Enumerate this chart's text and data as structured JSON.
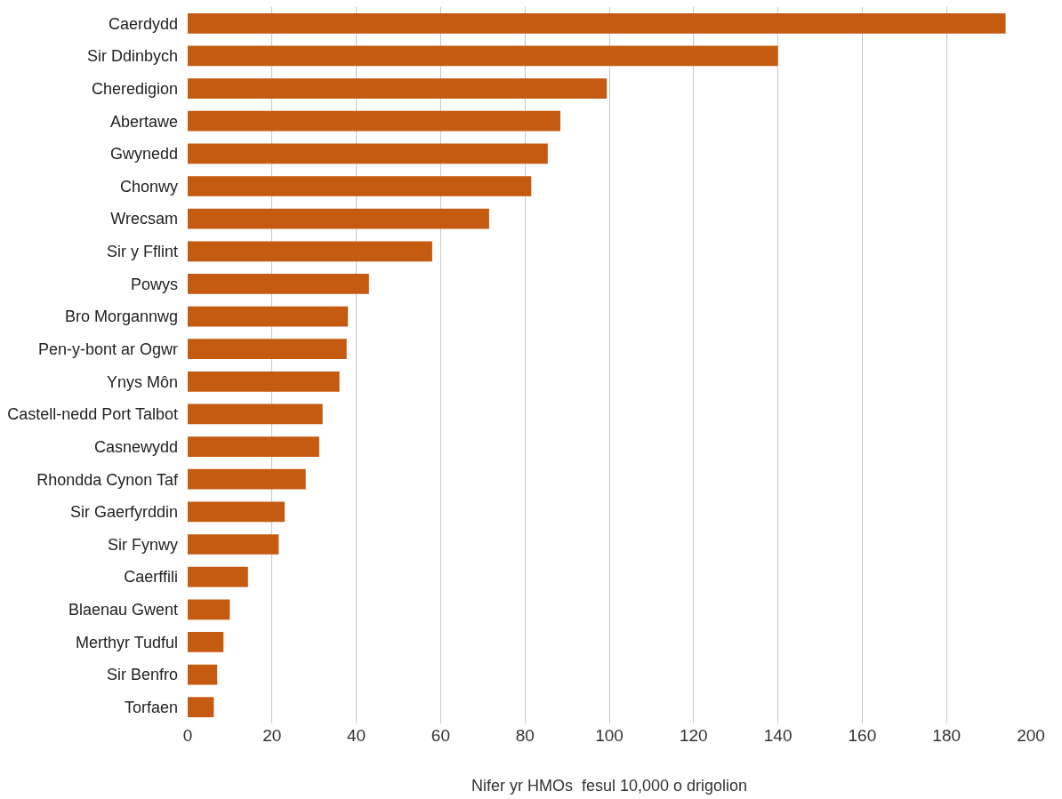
{
  "chart_data": {
    "type": "bar",
    "orientation": "horizontal",
    "xlabel": "Nifer yr HMOs  fesul 10,000 o drigolion",
    "categories": [
      "Caerdydd",
      "Sir Ddinbych",
      "Cheredigion",
      "Abertawe",
      "Gwynedd",
      "Chonwy",
      "Wrecsam",
      "Sir y Fflint",
      "Powys",
      "Bro Morgannwg",
      "Pen-y-bont ar Ogwr",
      "Ynys Môn",
      "Castell-nedd Port Talbot",
      "Casnewydd",
      "Rhondda Cynon Taf",
      "Sir Gaerfyrddin",
      "Sir Fynwy",
      "Caerffili",
      "Blaenau Gwent",
      "Merthyr Tudful",
      "Sir Benfro",
      "Torfaen"
    ],
    "values": [
      194,
      140,
      99.4,
      88.4,
      85.4,
      81.5,
      71.5,
      58,
      43,
      38,
      37.7,
      36,
      32,
      31.2,
      28,
      23,
      21.6,
      14.3,
      10,
      8.5,
      7,
      6.2
    ],
    "color": "#c55a11",
    "xlim": [
      0,
      200
    ],
    "xticks": [
      0,
      20,
      40,
      60,
      80,
      100,
      120,
      140,
      160,
      180,
      200
    ],
    "grid": "x"
  }
}
